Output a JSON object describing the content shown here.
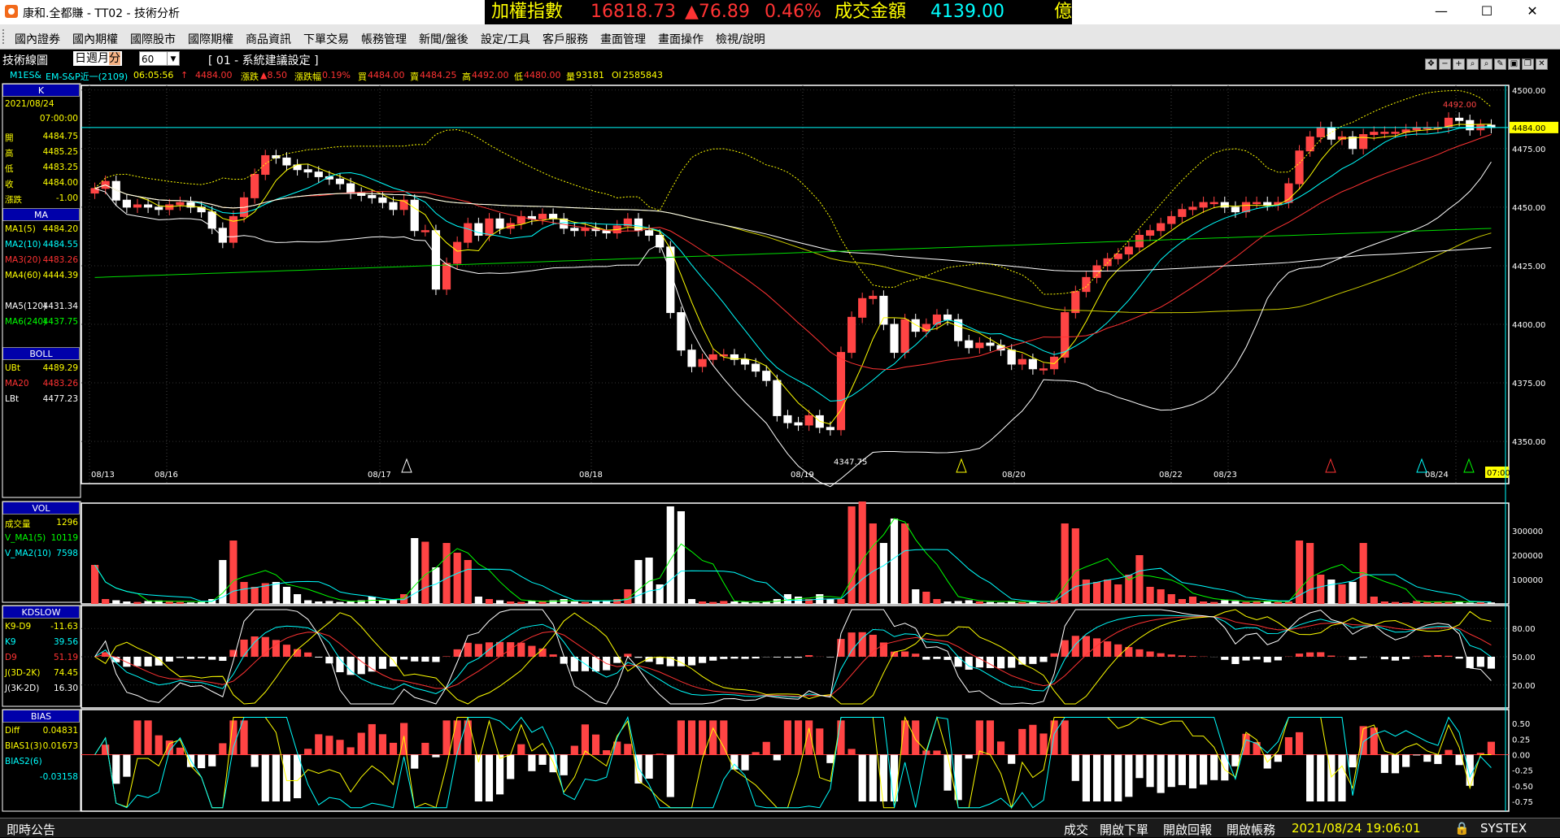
{
  "window": {
    "title": "康和.全都賺 - TT02 - 技術分析",
    "ticker": {
      "label1": "加權指數",
      "value1": "16818.73",
      "change": "▲76.89",
      "pct": "0.46%",
      "label2": "成交金額",
      "value2": "4139.00",
      "unit": "億"
    },
    "buttons": {
      "minimize": "—",
      "maximize": "☐",
      "close": "✕"
    }
  },
  "menu": [
    "國內證券",
    "國內期權",
    "國際股市",
    "國際期權",
    "商品資訊",
    "下單交易",
    "帳務管理",
    "新聞/盤後",
    "設定/工具",
    "客戶服務",
    "畫面管理",
    "畫面操作",
    "檢視/說明"
  ],
  "toolbar": {
    "title": "技術線圖",
    "periods": [
      "日",
      "週",
      "月",
      "分"
    ],
    "selected_period": "分",
    "interval": "60",
    "setting": "[ 01 - 系統建議設定 ]"
  },
  "quote": {
    "symbol": "M1ES&",
    "name": "EM-S&P近一(2109)",
    "time": "06:05:56",
    "price": "4484.00",
    "change_label": "漲跌",
    "change": "▲8.50",
    "pct_label": "漲跌幅",
    "pct": "0.19%",
    "buy_label": "買",
    "buy": "4484.00",
    "sell_label": "賣",
    "sell": "4484.25",
    "high_label": "高",
    "high": "4492.00",
    "low_label": "低",
    "low": "4480.00",
    "vol_label": "量",
    "vol": "93181",
    "oi_label": "OI",
    "oi": "2585843"
  },
  "k_panel": {
    "header": "K",
    "date": "2021/08/24",
    "time": "07:00:00",
    "rows": [
      {
        "k": "開",
        "v": "4484.75",
        "color": "#ffff00"
      },
      {
        "k": "高",
        "v": "4485.25",
        "color": "#ffff00"
      },
      {
        "k": "低",
        "v": "4483.25",
        "color": "#ffff00"
      },
      {
        "k": "收",
        "v": "4484.00",
        "color": "#ffff00"
      },
      {
        "k": "漲跌",
        "v": "-1.00",
        "color": "#ffff00"
      }
    ]
  },
  "ma_panel": {
    "header": "MA",
    "rows": [
      {
        "k": "MA1(5)",
        "v": "4484.20",
        "color": "#ffff00"
      },
      {
        "k": "MA2(10)",
        "v": "4484.55",
        "color": "#00ffff"
      },
      {
        "k": "MA3(20)",
        "v": "4483.26",
        "color": "#ff3333"
      },
      {
        "k": "MA4(60)",
        "v": "4444.39",
        "color": "#ffff00"
      },
      {
        "k": "MA5(120)",
        "v": "4431.34",
        "color": "#ffffff"
      },
      {
        "k": "MA6(240)",
        "v": "4437.75",
        "color": "#00ff00"
      }
    ]
  },
  "boll_panel": {
    "header": "BOLL",
    "rows": [
      {
        "k": "UBt",
        "v": "4489.29",
        "color": "#ffff00"
      },
      {
        "k": "MA20",
        "v": "4483.26",
        "color": "#ff3333"
      },
      {
        "k": "LBt",
        "v": "4477.23",
        "color": "#ffffff"
      }
    ]
  },
  "vol_panel": {
    "header": "VOL",
    "rows": [
      {
        "k": "成交量",
        "v": "1296",
        "color": "#ffff00"
      },
      {
        "k": "V_MA1(5)",
        "v": "10119",
        "color": "#00ff00"
      },
      {
        "k": "V_MA2(10)",
        "v": "7598",
        "color": "#00ffff"
      }
    ]
  },
  "kd_panel": {
    "header": "KDSLOW",
    "rows": [
      {
        "k": "K9-D9",
        "v": "-11.63",
        "color": "#ffff00"
      },
      {
        "k": "K9",
        "v": "39.56",
        "color": "#00ffff"
      },
      {
        "k": "D9",
        "v": "51.19",
        "color": "#ff3333"
      },
      {
        "k": "J(3D-2K)",
        "v": "74.45",
        "color": "#ffff00"
      },
      {
        "k": "J(3K-2D)",
        "v": "16.30",
        "color": "#ffffff"
      }
    ]
  },
  "bias_panel": {
    "header": "BIAS",
    "rows": [
      {
        "k": "Diff",
        "v": "0.04831",
        "color": "#ffff00"
      },
      {
        "k": "BIAS1(3)",
        "v": "0.01673",
        "color": "#ffff00"
      },
      {
        "k": "BIAS2(6)",
        "v": "",
        "color": "#00ffff"
      },
      {
        "k": "",
        "v": "-0.03158",
        "color": "#00ffff"
      }
    ]
  },
  "chart_data": {
    "type": "candlestick",
    "price_axis": [
      "4500.00",
      "4475.00",
      "4450.00",
      "4425.00",
      "4400.00",
      "4375.00",
      "4350.00"
    ],
    "price_levels": [
      4500,
      4475,
      4450,
      4425,
      4400,
      4375,
      4350
    ],
    "ylim": [
      4332,
      4502
    ],
    "current_price_label": "4484.00",
    "high_marker": "4492.00",
    "low_marker": "4347.75",
    "date_labels": [
      "08/13",
      "08/16",
      "08/17",
      "08/18",
      "08/19",
      "08/20",
      "08/22",
      "08/23",
      "08/24"
    ],
    "current_time_label": "07:00",
    "closes": [
      4458,
      4461,
      4453,
      4450,
      4451,
      4450,
      4449,
      4451,
      4452,
      4450,
      4448,
      4441,
      4435,
      4446,
      4454,
      4464,
      4472,
      4471,
      4468,
      4466,
      4465,
      4463,
      4462,
      4460,
      4456,
      4455,
      4454,
      4452,
      4449,
      4453,
      4440,
      4440,
      4415,
      4426,
      4435,
      4443,
      4438,
      4445,
      4441,
      4443,
      4446,
      4445,
      4447,
      4445,
      4441,
      4440,
      4441,
      4440,
      4439,
      4442,
      4445,
      4440,
      4438,
      4433,
      4405,
      4389,
      4382,
      4385,
      4387,
      4387,
      4385,
      4383,
      4380,
      4376,
      4361,
      4358,
      4357,
      4361,
      4356,
      4355,
      4388,
      4403,
      4411,
      4412,
      4400,
      4388,
      4402,
      4397,
      4400,
      4404,
      4402,
      4393,
      4390,
      4392,
      4391,
      4389,
      4383,
      4385,
      4381,
      4381,
      4386,
      4405,
      4414,
      4420,
      4425,
      4428,
      4430,
      4433,
      4438,
      4440,
      4443,
      4446,
      4449,
      4450,
      4452,
      4452,
      4450,
      4448,
      4452,
      4452,
      4451,
      4452,
      4460,
      4474,
      4480,
      4484,
      4479,
      4480,
      4475,
      4481,
      4482,
      4482,
      4482,
      4483,
      4484,
      4484,
      4484,
      4488,
      4487,
      4483,
      4485,
      4484
    ],
    "volume_axis": [
      "300000",
      "200000",
      "100000"
    ],
    "volume": [
      160,
      20,
      15,
      10,
      8,
      12,
      14,
      10,
      8,
      6,
      8,
      20,
      180,
      260,
      90,
      70,
      85,
      90,
      70,
      40,
      15,
      10,
      12,
      8,
      10,
      15,
      30,
      14,
      20,
      40,
      270,
      255,
      150,
      250,
      210,
      180,
      30,
      20,
      15,
      10,
      8,
      12,
      10,
      15,
      20,
      10,
      8,
      12,
      15,
      20,
      60,
      180,
      190,
      80,
      400,
      380,
      20,
      10,
      8,
      12,
      10,
      8,
      6,
      10,
      20,
      40,
      30,
      20,
      40,
      20,
      20,
      400,
      420,
      330,
      250,
      350,
      330,
      60,
      50,
      20,
      10,
      12,
      15,
      10,
      8,
      6,
      12,
      10,
      8,
      6,
      15,
      330,
      310,
      100,
      90,
      100,
      80,
      120,
      200,
      70,
      60,
      40,
      20,
      30,
      10,
      8,
      15,
      12,
      8,
      12,
      10,
      8,
      10,
      260,
      250,
      120,
      100,
      80,
      90,
      250,
      30,
      10,
      8,
      6,
      12,
      8,
      10,
      10,
      8,
      5,
      10,
      6
    ],
    "kd_axis": [
      "80.00",
      "50.00",
      "20.00"
    ],
    "bias_axis": [
      "0.50",
      "0.25",
      "0.00",
      "-0.25",
      "-0.50",
      "-0.75"
    ]
  },
  "status": {
    "left": "即時公告",
    "items": [
      "成交",
      "開啟下單",
      "開啟回報",
      "開啟帳務"
    ],
    "datetime": "2021/08/24 19:06:01",
    "brand": "SYSTEX"
  }
}
